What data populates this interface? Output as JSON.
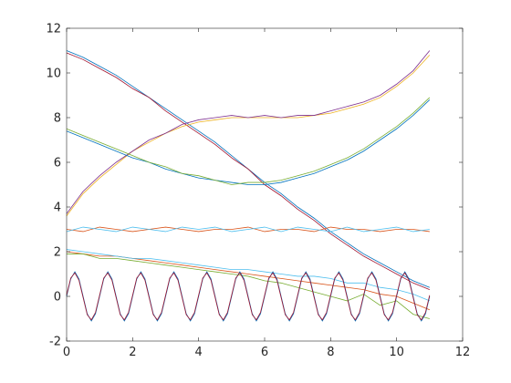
{
  "chart_data": {
    "type": "line",
    "x": [
      0,
      0.5,
      1,
      1.5,
      2,
      2.5,
      3,
      3.5,
      4,
      4.5,
      5,
      5.5,
      6,
      6.5,
      7,
      7.5,
      8,
      8.5,
      9,
      9.5,
      10,
      10.5,
      11
    ],
    "xlim": [
      0,
      12
    ],
    "ylim": [
      -2,
      12
    ],
    "xticks": [
      0,
      2,
      4,
      6,
      8,
      10,
      12
    ],
    "yticks": [
      -2,
      0,
      2,
      4,
      6,
      8,
      10,
      12
    ],
    "grid": false,
    "series": [
      {
        "color": "#0072BD",
        "values": [
          11,
          10.7,
          10.3,
          9.9,
          9.4,
          8.9,
          8.4,
          7.9,
          7.4,
          6.9,
          6.3,
          5.7,
          5.1,
          4.6,
          4.0,
          3.5,
          2.9,
          2.4,
          1.9,
          1.5,
          1.1,
          0.7,
          0.4
        ]
      },
      {
        "color": "#A2142F",
        "values": [
          10.9,
          10.6,
          10.2,
          9.8,
          9.3,
          8.9,
          8.3,
          7.8,
          7.3,
          6.8,
          6.2,
          5.7,
          5.0,
          4.5,
          3.9,
          3.4,
          2.8,
          2.3,
          1.8,
          1.4,
          1.0,
          0.6,
          0.3
        ]
      },
      {
        "color": "#EDB120",
        "values": [
          3.6,
          4.6,
          5.3,
          5.9,
          6.5,
          6.9,
          7.3,
          7.6,
          7.8,
          7.9,
          8.0,
          8.0,
          8.0,
          8.0,
          8.0,
          8.1,
          8.2,
          8.4,
          8.6,
          8.9,
          9.4,
          10.0,
          10.8
        ]
      },
      {
        "color": "#7E2F8E",
        "values": [
          3.7,
          4.7,
          5.4,
          6.0,
          6.5,
          7.0,
          7.3,
          7.7,
          7.9,
          8.0,
          8.1,
          8.0,
          8.1,
          8.0,
          8.1,
          8.1,
          8.3,
          8.5,
          8.7,
          9.0,
          9.5,
          10.1,
          11.0
        ]
      },
      {
        "color": "#0072BD",
        "values": [
          7.4,
          7.1,
          6.8,
          6.5,
          6.2,
          6.0,
          5.7,
          5.5,
          5.3,
          5.2,
          5.1,
          5.0,
          5.0,
          5.1,
          5.3,
          5.5,
          5.8,
          6.1,
          6.5,
          7.0,
          7.5,
          8.1,
          8.8
        ]
      },
      {
        "color": "#77AC30",
        "values": [
          7.5,
          7.2,
          6.9,
          6.6,
          6.3,
          6.0,
          5.8,
          5.5,
          5.4,
          5.2,
          5.0,
          5.1,
          5.1,
          5.2,
          5.4,
          5.6,
          5.9,
          6.2,
          6.6,
          7.1,
          7.6,
          8.2,
          8.9
        ]
      },
      {
        "color": "#D95319",
        "values": [
          3.0,
          2.9,
          3.1,
          3.0,
          2.9,
          3.0,
          3.1,
          3.0,
          2.9,
          3.0,
          3.0,
          3.1,
          2.9,
          3.0,
          3.0,
          2.9,
          3.1,
          3.0,
          3.0,
          2.9,
          3.0,
          3.0,
          2.9
        ]
      },
      {
        "color": "#4DBEEE",
        "values": [
          2.9,
          3.1,
          3.0,
          2.9,
          3.1,
          3.0,
          2.9,
          3.1,
          3.0,
          3.1,
          2.9,
          3.0,
          3.1,
          2.9,
          3.1,
          3.0,
          2.9,
          3.1,
          2.9,
          3.0,
          3.1,
          2.9,
          3.0
        ]
      },
      {
        "color": "#D95319",
        "values": [
          2.0,
          1.9,
          1.8,
          1.8,
          1.7,
          1.6,
          1.5,
          1.4,
          1.3,
          1.2,
          1.1,
          1.0,
          0.9,
          0.8,
          0.7,
          0.6,
          0.5,
          0.4,
          0.3,
          0.1,
          0.0,
          -0.3,
          -0.6
        ]
      },
      {
        "color": "#4DBEEE",
        "values": [
          2.1,
          2.0,
          1.9,
          1.8,
          1.7,
          1.7,
          1.6,
          1.5,
          1.4,
          1.3,
          1.2,
          1.2,
          1.1,
          1.0,
          0.9,
          0.9,
          0.8,
          0.6,
          0.6,
          0.4,
          0.3,
          0.1,
          -0.2
        ]
      },
      {
        "color": "#77AC30",
        "values": [
          1.9,
          1.9,
          1.7,
          1.7,
          1.6,
          1.5,
          1.4,
          1.3,
          1.2,
          1.1,
          1.0,
          0.9,
          0.7,
          0.6,
          0.4,
          0.2,
          0.0,
          -0.2,
          0.1,
          -0.4,
          -0.2,
          -0.8,
          -1.0
        ]
      },
      {
        "color": "#0072BD",
        "x": [
          0,
          0.125,
          0.25,
          0.375,
          0.5,
          0.625,
          0.75,
          0.875,
          1,
          1.125,
          1.25,
          1.375,
          1.5,
          1.625,
          1.75,
          1.875,
          2,
          2.125,
          2.25,
          2.375,
          2.5,
          2.625,
          2.75,
          2.875,
          3,
          3.125,
          3.25,
          3.375,
          3.5,
          3.625,
          3.75,
          3.875,
          4,
          4.125,
          4.25,
          4.375,
          4.5,
          4.625,
          4.75,
          4.875,
          5,
          5.125,
          5.25,
          5.375,
          5.5,
          5.625,
          5.75,
          5.875,
          6,
          6.125,
          6.25,
          6.375,
          6.5,
          6.625,
          6.75,
          6.875,
          7,
          7.125,
          7.25,
          7.375,
          7.5,
          7.625,
          7.75,
          7.875,
          8,
          8.125,
          8.25,
          8.375,
          8.5,
          8.625,
          8.75,
          8.875,
          9,
          9.125,
          9.25,
          9.375,
          9.5,
          9.625,
          9.75,
          9.875,
          10,
          10.125,
          10.25,
          10.375,
          10.5,
          10.625,
          10.75,
          10.875,
          11
        ],
        "values": [
          0,
          0.78,
          1.1,
          0.78,
          0,
          -0.78,
          -1.1,
          -0.78,
          0,
          0.78,
          1.1,
          0.78,
          0,
          -0.78,
          -1.1,
          -0.78,
          0,
          0.78,
          1.1,
          0.78,
          0,
          -0.78,
          -1.1,
          -0.78,
          0,
          0.78,
          1.1,
          0.78,
          0,
          -0.78,
          -1.1,
          -0.78,
          0,
          0.78,
          1.1,
          0.78,
          0,
          -0.78,
          -1.1,
          -0.78,
          0,
          0.78,
          1.1,
          0.78,
          0,
          -0.78,
          -1.1,
          -0.78,
          0,
          0.78,
          1.1,
          0.78,
          0,
          -0.78,
          -1.1,
          -0.78,
          0,
          0.78,
          1.1,
          0.78,
          0,
          -0.78,
          -1.1,
          -0.78,
          0,
          0.78,
          1.1,
          0.78,
          0,
          -0.78,
          -1.1,
          -0.78,
          0,
          0.78,
          1.1,
          0.78,
          0,
          -0.78,
          -1.1,
          -0.78,
          0,
          0.78,
          1.1,
          0.78,
          0,
          -0.78,
          -1.1,
          -0.78,
          0
        ]
      },
      {
        "color": "#A2142F",
        "x": [
          0,
          0.125,
          0.25,
          0.375,
          0.5,
          0.625,
          0.75,
          0.875,
          1,
          1.125,
          1.25,
          1.375,
          1.5,
          1.625,
          1.75,
          1.875,
          2,
          2.125,
          2.25,
          2.375,
          2.5,
          2.625,
          2.75,
          2.875,
          3,
          3.125,
          3.25,
          3.375,
          3.5,
          3.625,
          3.75,
          3.875,
          4,
          4.125,
          4.25,
          4.375,
          4.5,
          4.625,
          4.75,
          4.875,
          5,
          5.125,
          5.25,
          5.375,
          5.5,
          5.625,
          5.75,
          5.875,
          6,
          6.125,
          6.25,
          6.375,
          6.5,
          6.625,
          6.75,
          6.875,
          7,
          7.125,
          7.25,
          7.375,
          7.5,
          7.625,
          7.75,
          7.875,
          8,
          8.125,
          8.25,
          8.375,
          8.5,
          8.625,
          8.75,
          8.875,
          9,
          9.125,
          9.25,
          9.375,
          9.5,
          9.625,
          9.75,
          9.875,
          10,
          10.125,
          10.25,
          10.375,
          10.5,
          10.625,
          10.75,
          10.875,
          11
        ],
        "values": [
          0.05,
          0.82,
          1.05,
          0.72,
          -0.05,
          -0.82,
          -1.05,
          -0.72,
          0.05,
          0.82,
          1.05,
          0.72,
          -0.05,
          -0.82,
          -1.05,
          -0.72,
          0.05,
          0.82,
          1.05,
          0.72,
          -0.05,
          -0.82,
          -1.05,
          -0.72,
          0.05,
          0.82,
          1.05,
          0.72,
          -0.05,
          -0.82,
          -1.05,
          -0.72,
          0.05,
          0.82,
          1.05,
          0.72,
          -0.05,
          -0.82,
          -1.05,
          -0.72,
          0.05,
          0.82,
          1.05,
          0.72,
          -0.05,
          -0.82,
          -1.05,
          -0.72,
          0.05,
          0.82,
          1.05,
          0.72,
          -0.05,
          -0.82,
          -1.05,
          -0.72,
          0.05,
          0.82,
          1.05,
          0.72,
          -0.05,
          -0.82,
          -1.05,
          -0.72,
          0.05,
          0.82,
          1.05,
          0.72,
          -0.05,
          -0.82,
          -1.05,
          -0.72,
          0.05,
          0.82,
          1.05,
          0.72,
          -0.05,
          -0.82,
          -1.05,
          -0.72,
          0.05,
          0.82,
          1.05,
          0.72,
          -0.05,
          -0.82,
          -1.05,
          -0.72,
          0.05
        ]
      }
    ]
  }
}
